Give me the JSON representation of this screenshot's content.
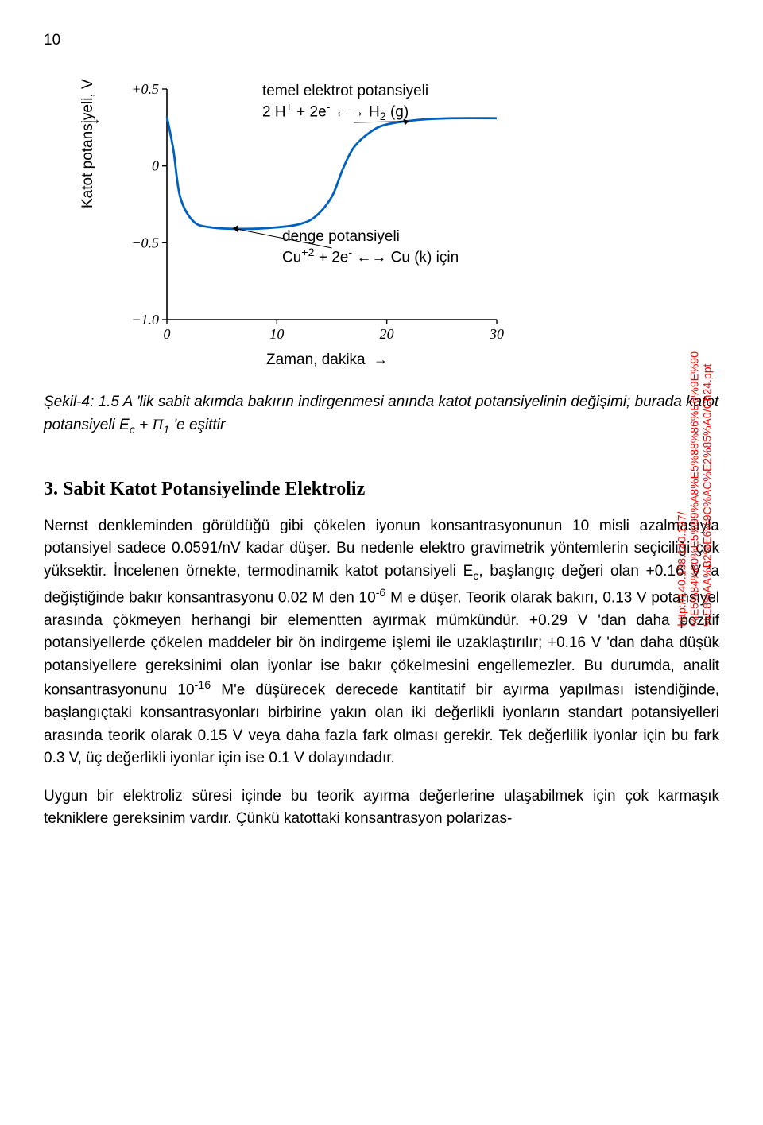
{
  "page_number": "10",
  "figure": {
    "chart": {
      "type": "line",
      "xlim": [
        0,
        30
      ],
      "ylim": [
        -1.0,
        0.5
      ],
      "xticks": [
        0,
        10,
        20,
        30
      ],
      "yticks": [
        -1.0,
        -0.5,
        0,
        0.5
      ],
      "ytick_labels": [
        "−1.0",
        "−0.5",
        "0",
        "+0.5"
      ],
      "xtick_labels": [
        "0",
        "10",
        "20",
        "30"
      ],
      "curve": [
        [
          0,
          0.32
        ],
        [
          0.6,
          0.1
        ],
        [
          1.2,
          -0.2
        ],
        [
          2.4,
          -0.36
        ],
        [
          4,
          -0.4
        ],
        [
          7,
          -0.41
        ],
        [
          10,
          -0.4
        ],
        [
          12,
          -0.38
        ],
        [
          13.5,
          -0.33
        ],
        [
          15,
          -0.2
        ],
        [
          16,
          -0.02
        ],
        [
          17,
          0.12
        ],
        [
          18.5,
          0.22
        ],
        [
          20,
          0.27
        ],
        [
          23,
          0.3
        ],
        [
          26,
          0.31
        ],
        [
          30,
          0.31
        ]
      ],
      "curve_color": "#0060c0",
      "curve_width": 2.8,
      "axis_color": "#000000",
      "background_color": "#ffffff",
      "font_size_ticks": 18
    },
    "ylabel": "Katot potansiyeli, V",
    "xlabel": "Zaman, dakika",
    "annotation_top": {
      "line1": "temel elektrot potansiyeli",
      "line2_pre": "2 H",
      "line2_sup1": "+",
      "line2_mid": " + 2e",
      "line2_sup2": "-",
      "line2_arrow": " ←→ H",
      "line2_sub": "2",
      "line2_post": " (g)"
    },
    "annotation_mid": {
      "line1": "denge potansiyeli",
      "line2_pre": "Cu",
      "line2_sup1": "+2",
      "line2_mid": " + 2e",
      "line2_sup2": "-",
      "line2_arrow": " ←→  Cu (k) için"
    },
    "url_line1": "http://140.138.140.197/",
    "url_line2": "%E5%84%80%E5%99%A8%E5%88%86%E6%9E%90",
    "url_line3": "%E8%AA%B2%E6%9C%AC%E2%85%A0/Ch24.ppt"
  },
  "caption": {
    "label": "Şekil-4:",
    "text_a": " 1.5 A 'lik sabit akımda bakırın indirgenmesi anında katot potansiyelinin değişimi; burada katot potansiyeli E",
    "sub_c": "c",
    "text_b": " + ",
    "pi": "Π",
    "sub_1": "1",
    "text_c": " 'e eşittir"
  },
  "heading": "3. Sabit Katot Potansiyelinde Elektroliz",
  "p1_a": "Nernst denkleminden görüldüğü gibi çökelen iyonun konsantrasyonunun 10 misli azalmasıyla potansiyel sadece 0.0591/nV kadar düşer. Bu nedenle elektro gravimetrik yöntemlerin seçiciliği çok yüksektir. İncelenen örnekte, termodinamik katot potansiyeli E",
  "p1_sub1": "c",
  "p1_b": ", başlangıç değeri olan +0.16 V 'a değiştiğinde bakır konsantrasyonu 0.02 M den 10",
  "p1_sup1": "-6",
  "p1_c": " M e düşer. Teorik olarak bakırı, 0.13 V potansiyel arasında çökmeyen herhangi bir elementten ayırmak mümkündür. +0.29 V 'dan daha pozitif potansiyellerde çökelen maddeler bir ön indirgeme işlemi ile uzaklaştırılır; +0.16 V 'dan daha düşük potansiyellere gereksinimi olan iyonlar ise bakır çökelmesini engellemezler. Bu durumda, analit konsantrasyonunu 10",
  "p1_sup2": "-16",
  "p1_d": " M'e düşürecek derecede kantitatif bir ayırma yapılması istendiğinde, başlangıçtaki konsantrasyonları birbirine yakın olan iki değerlikli iyonların standart potansiyelleri arasında teorik olarak 0.15 V veya daha fazla fark olması gerekir. Tek değerlilik iyonlar için bu fark 0.3 V, üç değerlikli iyonlar için ise 0.1 V dolayındadır.",
  "p2": "Uygun bir elektroliz süresi içinde bu teorik ayırma değerlerine ulaşabilmek için çok karmaşık tekniklere gereksinim vardır. Çünkü katottaki konsantrasyon polarizas-"
}
